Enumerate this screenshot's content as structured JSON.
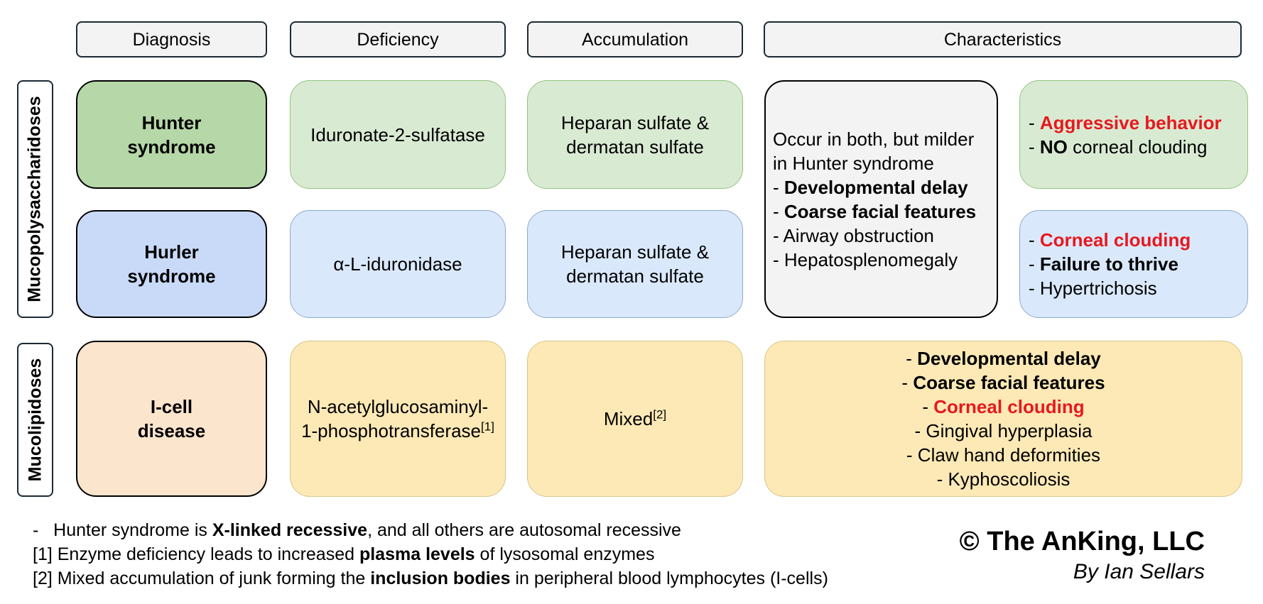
{
  "headers": {
    "diagnosis": "Diagnosis",
    "deficiency": "Deficiency",
    "accumulation": "Accumulation",
    "characteristics": "Characteristics"
  },
  "groups": {
    "mps": "Mucopolysaccharidoses",
    "ml": "Mucolipidoses"
  },
  "hunter": {
    "diagnosis": [
      "Hunter",
      "syndrome"
    ],
    "deficiency": "Iduronate-2-sulfatase",
    "accumulation": [
      "Heparan sulfate &",
      "dermatan sulfate"
    ],
    "specific": {
      "l1_prefix": "- ",
      "l1": "Aggressive behavior",
      "l2_prefix": "- ",
      "l2_bold": "NO",
      "l2_rest": " corneal clouding"
    }
  },
  "hurler": {
    "diagnosis": [
      "Hurler",
      "syndrome"
    ],
    "deficiency": "α-L-iduronidase",
    "accumulation": [
      "Heparan sulfate &",
      "dermatan sulfate"
    ],
    "specific": {
      "l1_prefix": "- ",
      "l1": "Corneal clouding",
      "l2_prefix": "- ",
      "l2": "Failure to thrive",
      "l3": "- Hypertrichosis"
    }
  },
  "shared": {
    "intro1": "Occur in both, but milder",
    "intro2": "in Hunter syndrome",
    "b1_prefix": "- ",
    "b1": "Developmental delay",
    "b2_prefix": "- ",
    "b2": "Coarse facial features",
    "l3": "- Airway obstruction",
    "l4": "- Hepatosplenomegaly"
  },
  "icell": {
    "diagnosis": [
      "I-cell",
      "disease"
    ],
    "deficiency": [
      "N-acetylglucosaminyl-",
      "1-phosphotransferase"
    ],
    "deficiency_ref": "[1]",
    "accumulation": "Mixed",
    "accumulation_ref": "[2]",
    "characteristics": {
      "b1_prefix": "- ",
      "b1": "Developmental delay",
      "b2_prefix": "- ",
      "b2": "Coarse facial features",
      "r1_prefix": "- ",
      "r1": "Corneal clouding",
      "l4": "- Gingival hyperplasia",
      "l5": "- Claw hand deformities",
      "l6": "- Kyphoscoliosis"
    }
  },
  "notes": {
    "n1_pre": "-   Hunter syndrome is ",
    "n1_bold": "X-linked recessive",
    "n1_post": ", and all others are autosomal recessive",
    "n2_pre": "[1] Enzyme deficiency leads to increased ",
    "n2_bold": "plasma levels",
    "n2_post": " of lysosomal enzymes",
    "n3_pre": "[2] Mixed accumulation of junk forming the ",
    "n3_bold": "inclusion bodies",
    "n3_post": " in peripheral blood lymphocytes (I-cells)"
  },
  "credit": {
    "copyright": "© The AnKing, LLC",
    "author": "By Ian Sellars"
  }
}
